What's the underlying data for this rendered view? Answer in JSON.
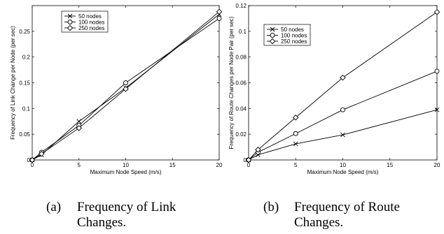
{
  "chart_data": [
    {
      "type": "line",
      "caption_tag": "(a)",
      "caption_line1": "Frequency of Link",
      "caption_line2": "Changes.",
      "xlabel": "Maximum Node Speed (m/s)",
      "ylabel": "Frequency of Link Change per Node (per sec)",
      "xlim": [
        0,
        20
      ],
      "ylim": [
        0,
        0.3
      ],
      "xticks": [
        0,
        5,
        10,
        15,
        20
      ],
      "xtick_labels": [
        "0",
        "5",
        "10",
        "15",
        "20"
      ],
      "yticks": [
        0,
        0.05,
        0.1,
        0.15,
        0.2,
        0.25
      ],
      "ytick_labels": [
        "0",
        "0.05",
        "0.1",
        "0.15",
        "0.2",
        "0.25"
      ],
      "grid": false,
      "legend": "top-left",
      "series": [
        {
          "name": "50 nodes",
          "marker": "x",
          "x": [
            0,
            1,
            5,
            10,
            20
          ],
          "y": [
            0,
            0.01,
            0.075,
            0.14,
            0.283
          ]
        },
        {
          "name": "100 nodes",
          "marker": "circle",
          "x": [
            0,
            1,
            5,
            10,
            20
          ],
          "y": [
            0,
            0.015,
            0.067,
            0.15,
            0.275
          ]
        },
        {
          "name": "250 nodes",
          "marker": "diamond",
          "x": [
            0,
            1,
            5,
            10,
            20
          ],
          "y": [
            0,
            0.012,
            0.062,
            0.138,
            0.288
          ]
        }
      ]
    },
    {
      "type": "line",
      "caption_tag": "(b)",
      "caption_line1": "Frequency of Route",
      "caption_line2": "Changes.",
      "xlabel": "Maximum Node Speed (m/s)",
      "ylabel": "Frequency of Route Changes per Node Pair (per sec)",
      "xlim": [
        0,
        20
      ],
      "ylim": [
        0,
        0.12
      ],
      "xticks": [
        0,
        5,
        10,
        15,
        20
      ],
      "xtick_labels": [
        "0",
        "5",
        "10",
        "15",
        "20"
      ],
      "yticks": [
        0,
        0.02,
        0.04,
        0.06,
        0.08,
        0.1,
        0.12
      ],
      "ytick_labels": [
        "0",
        "0.02",
        "0.04",
        "0.06",
        "0.08",
        "0.1",
        "0.12"
      ],
      "grid": false,
      "legend": "top-left",
      "series": [
        {
          "name": "50 nodes",
          "marker": "x",
          "x": [
            0,
            1,
            5,
            10,
            20
          ],
          "y": [
            0,
            0.004,
            0.0125,
            0.0195,
            0.039
          ]
        },
        {
          "name": "100 nodes",
          "marker": "circle",
          "x": [
            0,
            1,
            5,
            10,
            20
          ],
          "y": [
            0,
            0.006,
            0.0205,
            0.039,
            0.069
          ]
        },
        {
          "name": "250 nodes",
          "marker": "diamond",
          "x": [
            0,
            1,
            5,
            10,
            20
          ],
          "y": [
            0,
            0.008,
            0.033,
            0.064,
            0.115
          ]
        }
      ]
    }
  ]
}
